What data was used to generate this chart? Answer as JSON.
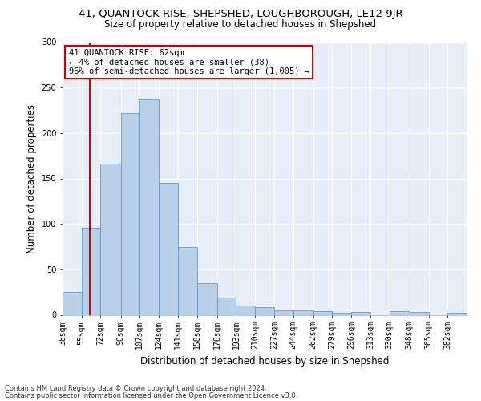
{
  "title1": "41, QUANTOCK RISE, SHEPSHED, LOUGHBOROUGH, LE12 9JR",
  "title2": "Size of property relative to detached houses in Shepshed",
  "xlabel": "Distribution of detached houses by size in Shepshed",
  "ylabel": "Number of detached properties",
  "footnote1": "Contains HM Land Registry data © Crown copyright and database right 2024.",
  "footnote2": "Contains public sector information licensed under the Open Government Licence v3.0.",
  "annotation_title": "41 QUANTOCK RISE: 62sqm",
  "annotation_line1": "← 4% of detached houses are smaller (38)",
  "annotation_line2": "96% of semi-detached houses are larger (1,005) →",
  "bin_edges": [
    38,
    55,
    72,
    90,
    107,
    124,
    141,
    158,
    176,
    193,
    210,
    227,
    244,
    262,
    279,
    296,
    313,
    330,
    348,
    365,
    382,
    399
  ],
  "bar_heights": [
    25,
    96,
    166,
    222,
    237,
    145,
    75,
    35,
    19,
    10,
    8,
    5,
    5,
    4,
    2,
    3,
    0,
    4,
    3,
    0,
    2
  ],
  "bin_labels": [
    "38sqm",
    "55sqm",
    "72sqm",
    "90sqm",
    "107sqm",
    "124sqm",
    "141sqm",
    "158sqm",
    "176sqm",
    "193sqm",
    "210sqm",
    "227sqm",
    "244sqm",
    "262sqm",
    "279sqm",
    "296sqm",
    "313sqm",
    "330sqm",
    "348sqm",
    "365sqm",
    "382sqm"
  ],
  "bar_color": "#b8d0e8",
  "bar_edge_color": "#6699cc",
  "red_line_x": 62,
  "ylim": [
    0,
    300
  ],
  "yticks": [
    0,
    50,
    100,
    150,
    200,
    250,
    300
  ],
  "fig_bg_color": "#ffffff",
  "plot_bg_color": "#e8eef8",
  "grid_color": "#ffffff",
  "annotation_box_color": "#ffffff",
  "annotation_border_color": "#cc0000",
  "red_line_color": "#cc0000",
  "title1_fontsize": 9.5,
  "title2_fontsize": 8.5,
  "xlabel_fontsize": 8.5,
  "ylabel_fontsize": 8.5,
  "footnote_fontsize": 6.0,
  "tick_fontsize": 7.0,
  "annotation_fontsize": 7.5
}
